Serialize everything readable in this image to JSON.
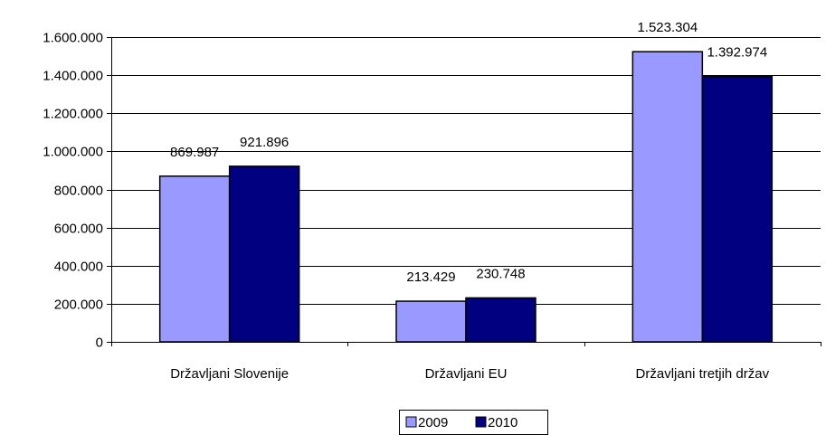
{
  "chart_data": {
    "type": "bar",
    "title": "",
    "xlabel": "",
    "ylabel": "",
    "categories": [
      "Državljani Slovenije",
      "Državljani EU",
      "Državljani tretjih držav"
    ],
    "series": [
      {
        "name": "2009",
        "values": [
          869987,
          213429,
          1523304
        ],
        "labels": [
          "869.987",
          "213.429",
          "1.523.304"
        ],
        "color": "#9999ff"
      },
      {
        "name": "2010",
        "values": [
          921896,
          230748,
          1392974
        ],
        "labels": [
          "921.896",
          "230.748",
          "1.392.974"
        ],
        "color": "#000080"
      }
    ],
    "ylim": [
      0,
      1600000
    ],
    "yticks": [
      0,
      200000,
      400000,
      600000,
      800000,
      1000000,
      1200000,
      1400000,
      1600000
    ],
    "ytick_labels": [
      "0",
      "200.000",
      "400.000",
      "600.000",
      "800.000",
      "1.000.000",
      "1.200.000",
      "1.400.000",
      "1.600.000"
    ],
    "grid": true,
    "legend_position": "bottom"
  }
}
